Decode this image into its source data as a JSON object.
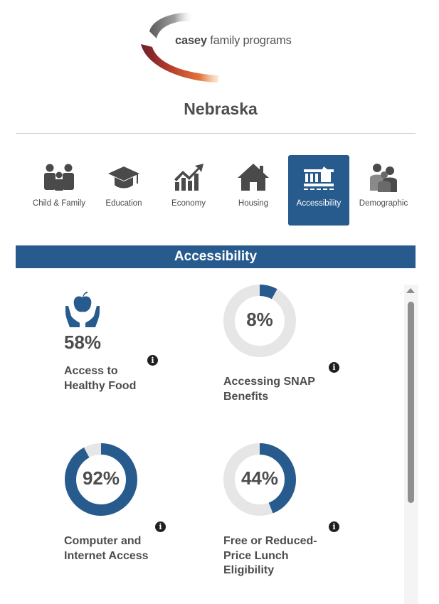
{
  "brand": {
    "name_bold": "casey",
    "name_rest": " family programs"
  },
  "state": "Nebraska",
  "tabs": [
    {
      "label": "Child & Family",
      "icon": "family-icon",
      "active": false
    },
    {
      "label": "Education",
      "icon": "graduation-cap-icon",
      "active": false
    },
    {
      "label": "Economy",
      "icon": "economy-chart-icon",
      "active": false
    },
    {
      "label": "Housing",
      "icon": "house-icon",
      "active": false
    },
    {
      "label": "Accessibility",
      "icon": "accessibility-building-icon",
      "active": true
    },
    {
      "label": "Demographic",
      "icon": "demographic-people-icon",
      "active": false
    }
  ],
  "section": {
    "title": "Accessibility"
  },
  "stats": [
    {
      "value": "58%",
      "label_lines": [
        "Access to",
        "Healthy Food"
      ],
      "icon": "apple-hands-icon",
      "percent": 58
    },
    {
      "value": "8%",
      "label_lines": [
        "Accessing SNAP",
        "Benefits"
      ],
      "percent": 8
    },
    {
      "value": "92%",
      "label_lines": [
        "Computer and",
        "Internet Access"
      ],
      "percent": 92
    },
    {
      "value": "44%",
      "label_lines": [
        "Free or Reduced-",
        "Price Lunch",
        "Eligibility"
      ],
      "percent": 44
    }
  ],
  "info_glyph": "i",
  "colors": {
    "accent": "#275b8e",
    "ring_bg": "#e6e6e6",
    "text": "#4d4d4d"
  }
}
